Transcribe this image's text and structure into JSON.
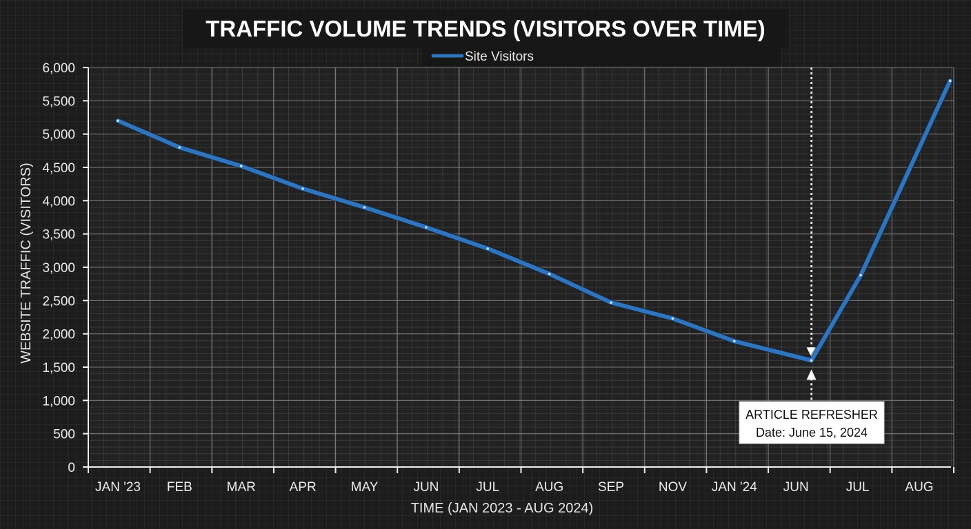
{
  "colors": {
    "background": "#1c1c1c",
    "plot_background": "#262626",
    "grid_major": "#8a8a8a",
    "grid_minor": "#4a4a4a",
    "series": "#2f74bd",
    "annotation_box": "#ffffff",
    "annotation_text": "#111111"
  },
  "chart_data": {
    "type": "line",
    "title": "TRAFFIC VOLUME TRENDS (VISITORS OVER TIME)",
    "xlabel": "TIME (JAN 2023 - AUG 2024)",
    "ylabel": "WEBSITE TRAFFIC (VISITORS)",
    "categories": [
      "JAN '23",
      "FEB",
      "MAR",
      "APR",
      "MAY",
      "JUN",
      "JUL",
      "AUG",
      "SEP",
      "NOV",
      "JAN '24",
      "JUN",
      "JUL",
      "AUG"
    ],
    "ylim": [
      0,
      6000
    ],
    "yticks": [
      0,
      500,
      1000,
      1500,
      2000,
      2500,
      3000,
      3500,
      4000,
      4500,
      5000,
      5500,
      6000
    ],
    "ytick_labels": [
      "0",
      "500",
      "1,000",
      "1,500",
      "2,000",
      "2,500",
      "3,000",
      "3,500",
      "4,000",
      "4,500",
      "5,000",
      "5,500",
      "6,000"
    ],
    "grid": true,
    "legend_position": "top-center",
    "series": [
      {
        "name": "Site Visitors",
        "x": [
          0,
          1,
          2,
          3,
          4,
          5,
          6,
          7,
          8,
          9,
          10,
          11.25,
          12.05,
          13.5
        ],
        "values": [
          5200,
          4800,
          4520,
          4180,
          3900,
          3600,
          3280,
          2900,
          2470,
          2230,
          1890,
          1600,
          2880,
          5800
        ]
      }
    ],
    "annotations": [
      {
        "label": "ARTICLE REFRESHER",
        "sublabel": "Date: June 15, 2024",
        "x": 11.25,
        "y": 1600
      }
    ]
  }
}
